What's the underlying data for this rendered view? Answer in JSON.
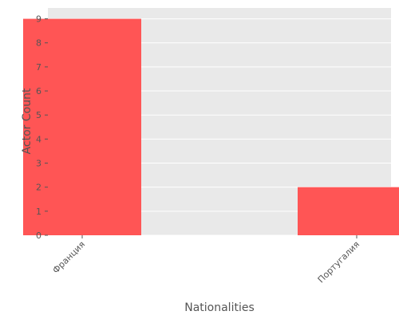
{
  "chart_data": {
    "type": "bar",
    "categories": [
      "Франция",
      "Португалия"
    ],
    "values": [
      9,
      2
    ],
    "title": "",
    "xlabel": "Nationalities",
    "ylabel": "Actor Count",
    "ylim": [
      0,
      9.45
    ],
    "yticks": [
      0,
      1,
      2,
      3,
      4,
      5,
      6,
      7,
      8,
      9
    ],
    "grid": true,
    "bar_color": "#ff5555",
    "plot_background": "#e9e9e9"
  }
}
